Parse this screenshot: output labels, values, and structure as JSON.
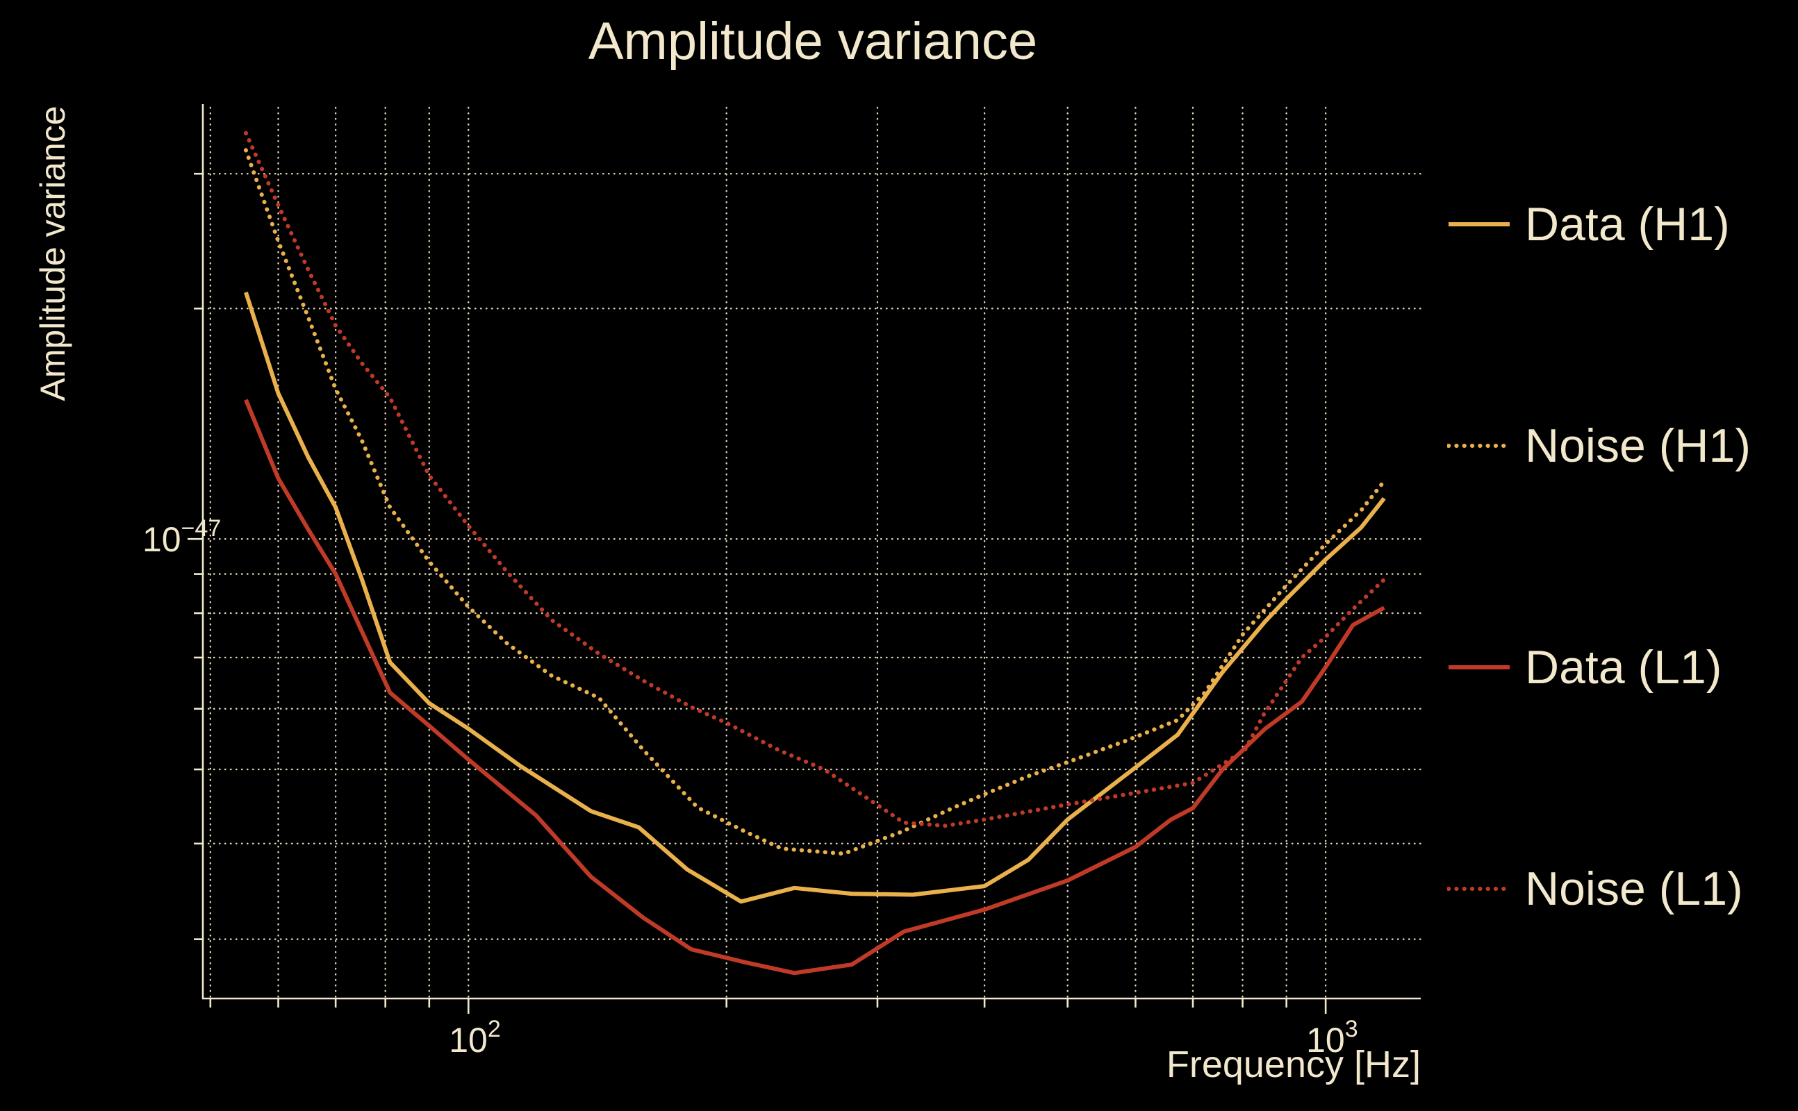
{
  "title": "Amplitude variance",
  "colors": {
    "background": "#000000",
    "text": "#F2E8CC",
    "grid": "#EDE3C3",
    "spine": "#F2E8CC",
    "h1": "#E9B04C",
    "l1": "#C03A28"
  },
  "chart_data": {
    "type": "line",
    "title": "Amplitude variance",
    "xlabel": "Frequency [Hz]",
    "ylabel": "Amplitude variance",
    "x_scale": "log",
    "y_scale": "log",
    "xlim": [
      49,
      1291
    ],
    "values_unit": "1e-48",
    "ylim_e48": [
      2.51,
      36.6
    ],
    "grid": true,
    "legend_position": "right-outside",
    "x_gridlines": [
      50,
      60,
      70,
      80,
      90,
      100,
      200,
      300,
      400,
      500,
      600,
      700,
      800,
      900,
      1000
    ],
    "y_gridlines_e48": [
      3,
      4,
      5,
      6,
      7,
      8,
      9,
      10,
      20,
      30
    ],
    "x_major_ticks": [
      100,
      1000
    ],
    "y_major_ticks_e48": [
      10
    ],
    "x_tick_labels": [
      {
        "value": 100,
        "base": "10",
        "exp": "2"
      },
      {
        "value": 1000,
        "base": "10",
        "exp": "3"
      }
    ],
    "y_tick_labels": [
      {
        "value_e48": 10,
        "base": "10",
        "exp": "−47"
      }
    ],
    "series": [
      {
        "name": "Data (H1)",
        "style": "solid",
        "color_key": "h1",
        "points": [
          [
            55,
            21.0
          ],
          [
            60,
            15.5
          ],
          [
            65,
            12.8
          ],
          [
            70,
            11.0
          ],
          [
            75,
            8.9
          ],
          [
            81,
            6.9
          ],
          [
            90,
            6.1
          ],
          [
            100,
            5.65
          ],
          [
            115,
            5.05
          ],
          [
            139,
            4.41
          ],
          [
            158,
            4.2
          ],
          [
            180,
            3.7
          ],
          [
            208,
            3.36
          ],
          [
            240,
            3.5
          ],
          [
            280,
            3.44
          ],
          [
            330,
            3.43
          ],
          [
            400,
            3.52
          ],
          [
            450,
            3.81
          ],
          [
            500,
            4.3
          ],
          [
            600,
            5.03
          ],
          [
            672,
            5.55
          ],
          [
            758,
            6.7
          ],
          [
            850,
            7.8
          ],
          [
            900,
            8.35
          ],
          [
            1000,
            9.4
          ],
          [
            1100,
            10.35
          ],
          [
            1170,
            11.3
          ]
        ]
      },
      {
        "name": "Noise (H1)",
        "style": "dotted",
        "color_key": "h1",
        "points": [
          [
            55,
            32.2
          ],
          [
            60,
            24.5
          ],
          [
            65,
            19.5
          ],
          [
            70,
            15.7
          ],
          [
            75,
            13.5
          ],
          [
            81,
            11.0
          ],
          [
            90,
            9.34
          ],
          [
            100,
            8.15
          ],
          [
            111,
            7.3
          ],
          [
            125,
            6.63
          ],
          [
            142,
            6.2
          ],
          [
            160,
            5.3
          ],
          [
            185,
            4.46
          ],
          [
            210,
            4.15
          ],
          [
            232,
            3.94
          ],
          [
            274,
            3.88
          ],
          [
            321,
            4.15
          ],
          [
            367,
            4.45
          ],
          [
            400,
            4.64
          ],
          [
            450,
            4.9
          ],
          [
            500,
            5.11
          ],
          [
            585,
            5.45
          ],
          [
            672,
            5.8
          ],
          [
            723,
            6.3
          ],
          [
            800,
            7.5
          ],
          [
            900,
            8.7
          ],
          [
            1000,
            9.85
          ],
          [
            1100,
            10.9
          ],
          [
            1170,
            11.9
          ]
        ]
      },
      {
        "name": "Data (L1)",
        "style": "solid",
        "color_key": "l1",
        "points": [
          [
            55,
            15.2
          ],
          [
            60,
            12.0
          ],
          [
            65,
            10.3
          ],
          [
            70,
            9.0
          ],
          [
            75,
            7.6
          ],
          [
            81,
            6.3
          ],
          [
            90,
            5.7
          ],
          [
            100,
            5.15
          ],
          [
            120,
            4.35
          ],
          [
            139,
            3.62
          ],
          [
            160,
            3.2
          ],
          [
            182,
            2.91
          ],
          [
            210,
            2.8
          ],
          [
            240,
            2.71
          ],
          [
            280,
            2.78
          ],
          [
            322,
            3.07
          ],
          [
            400,
            3.28
          ],
          [
            500,
            3.58
          ],
          [
            600,
            3.96
          ],
          [
            660,
            4.3
          ],
          [
            700,
            4.45
          ],
          [
            758,
            5.0
          ],
          [
            850,
            5.65
          ],
          [
            938,
            6.13
          ],
          [
            1000,
            6.8
          ],
          [
            1076,
            7.72
          ],
          [
            1170,
            8.13
          ]
        ]
      },
      {
        "name": "Noise (L1)",
        "style": "dotted",
        "color_key": "l1",
        "points": [
          [
            55,
            33.9
          ],
          [
            60,
            27.3
          ],
          [
            65,
            22.5
          ],
          [
            70,
            19.0
          ],
          [
            75,
            17.0
          ],
          [
            81,
            15.3
          ],
          [
            90,
            12.1
          ],
          [
            100,
            10.4
          ],
          [
            111,
            9.05
          ],
          [
            125,
            7.84
          ],
          [
            142,
            7.08
          ],
          [
            161,
            6.5
          ],
          [
            182,
            6.03
          ],
          [
            200,
            5.75
          ],
          [
            230,
            5.3
          ],
          [
            260,
            5.0
          ],
          [
            322,
            4.26
          ],
          [
            360,
            4.22
          ],
          [
            400,
            4.3
          ],
          [
            500,
            4.5
          ],
          [
            600,
            4.66
          ],
          [
            700,
            4.8
          ],
          [
            805,
            5.3
          ],
          [
            847,
            5.9
          ],
          [
            938,
            7.0
          ],
          [
            1000,
            7.45
          ],
          [
            1076,
            8.1
          ],
          [
            1170,
            8.85
          ]
        ]
      }
    ]
  },
  "legend": {
    "items": [
      {
        "label": "Data (H1)",
        "style": "solid",
        "color_key": "h1"
      },
      {
        "label": "Noise (H1)",
        "style": "dotted",
        "color_key": "h1"
      },
      {
        "label": "Data (L1)",
        "style": "solid",
        "color_key": "l1"
      },
      {
        "label": "Noise (L1)",
        "style": "dotted",
        "color_key": "l1"
      }
    ]
  }
}
